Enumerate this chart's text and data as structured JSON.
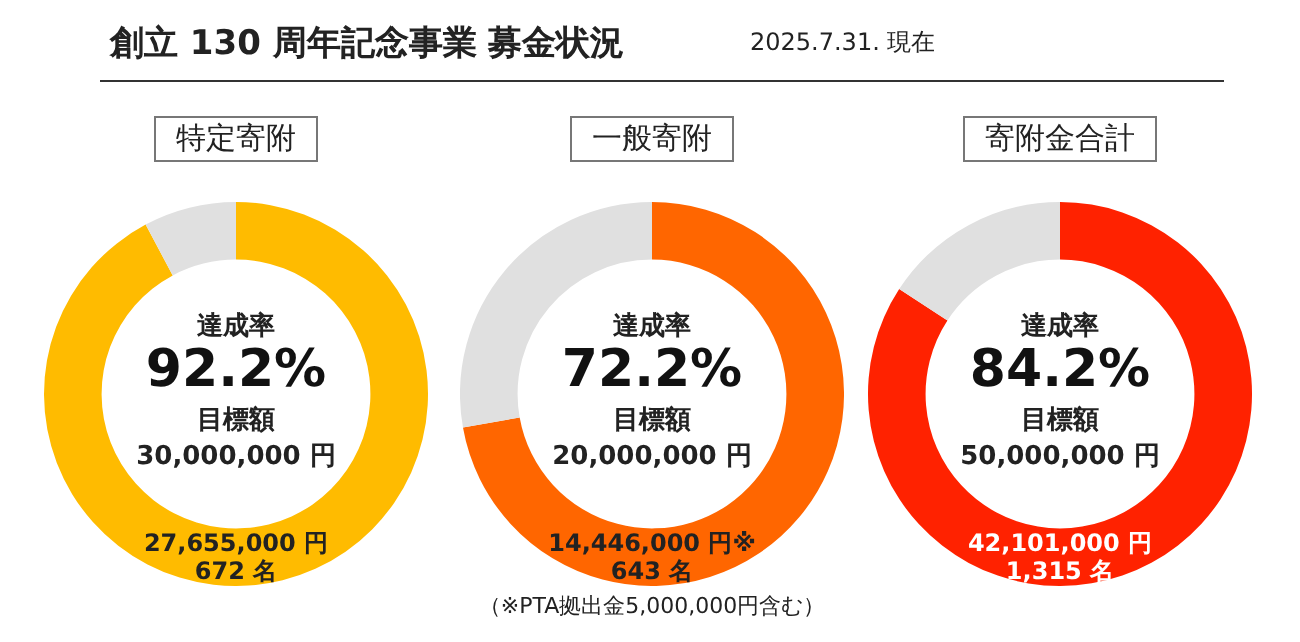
{
  "chart_data": [
    {
      "type": "donut",
      "title": "特定寄附",
      "categories": [
        null,
        null
      ],
      "values": [
        92.2,
        7.8
      ],
      "colors": [
        "#ffbb00",
        "#e0e0e0"
      ],
      "value_labels": [
        "92.2%",
        null
      ],
      "legend": false,
      "annotations": [
        "達成率",
        "目標額",
        "30,000,000 円",
        "27,655,000 円",
        "672 名",
        "創立 130 周年記念事業  募金状況",
        "2025.7.31. 現在"
      ]
    },
    {
      "type": "donut",
      "title": "一般寄附",
      "categories": [
        null,
        null
      ],
      "values": [
        72.2,
        27.8
      ],
      "colors": [
        "#ff6600",
        "#e0e0e0"
      ],
      "value_labels": [
        "72.2%",
        null
      ],
      "legend": false,
      "annotations": [
        "達成率",
        "目標額",
        "20,000,000 円",
        "14,446,000 円※",
        "643 名",
        "（※PTA拠出金5,000,000円含む）"
      ]
    },
    {
      "type": "donut",
      "title": "寄附金合計",
      "categories": [
        null,
        null
      ],
      "values": [
        84.2,
        15.8
      ],
      "colors": [
        "#ff2200",
        "#e0e0e0"
      ],
      "value_labels": [
        "84.2%",
        null
      ],
      "legend": false,
      "annotations": [
        "達成率",
        "目標額",
        "50,000,000 円",
        "42,101,000 円",
        "1,315 名"
      ]
    }
  ]
}
